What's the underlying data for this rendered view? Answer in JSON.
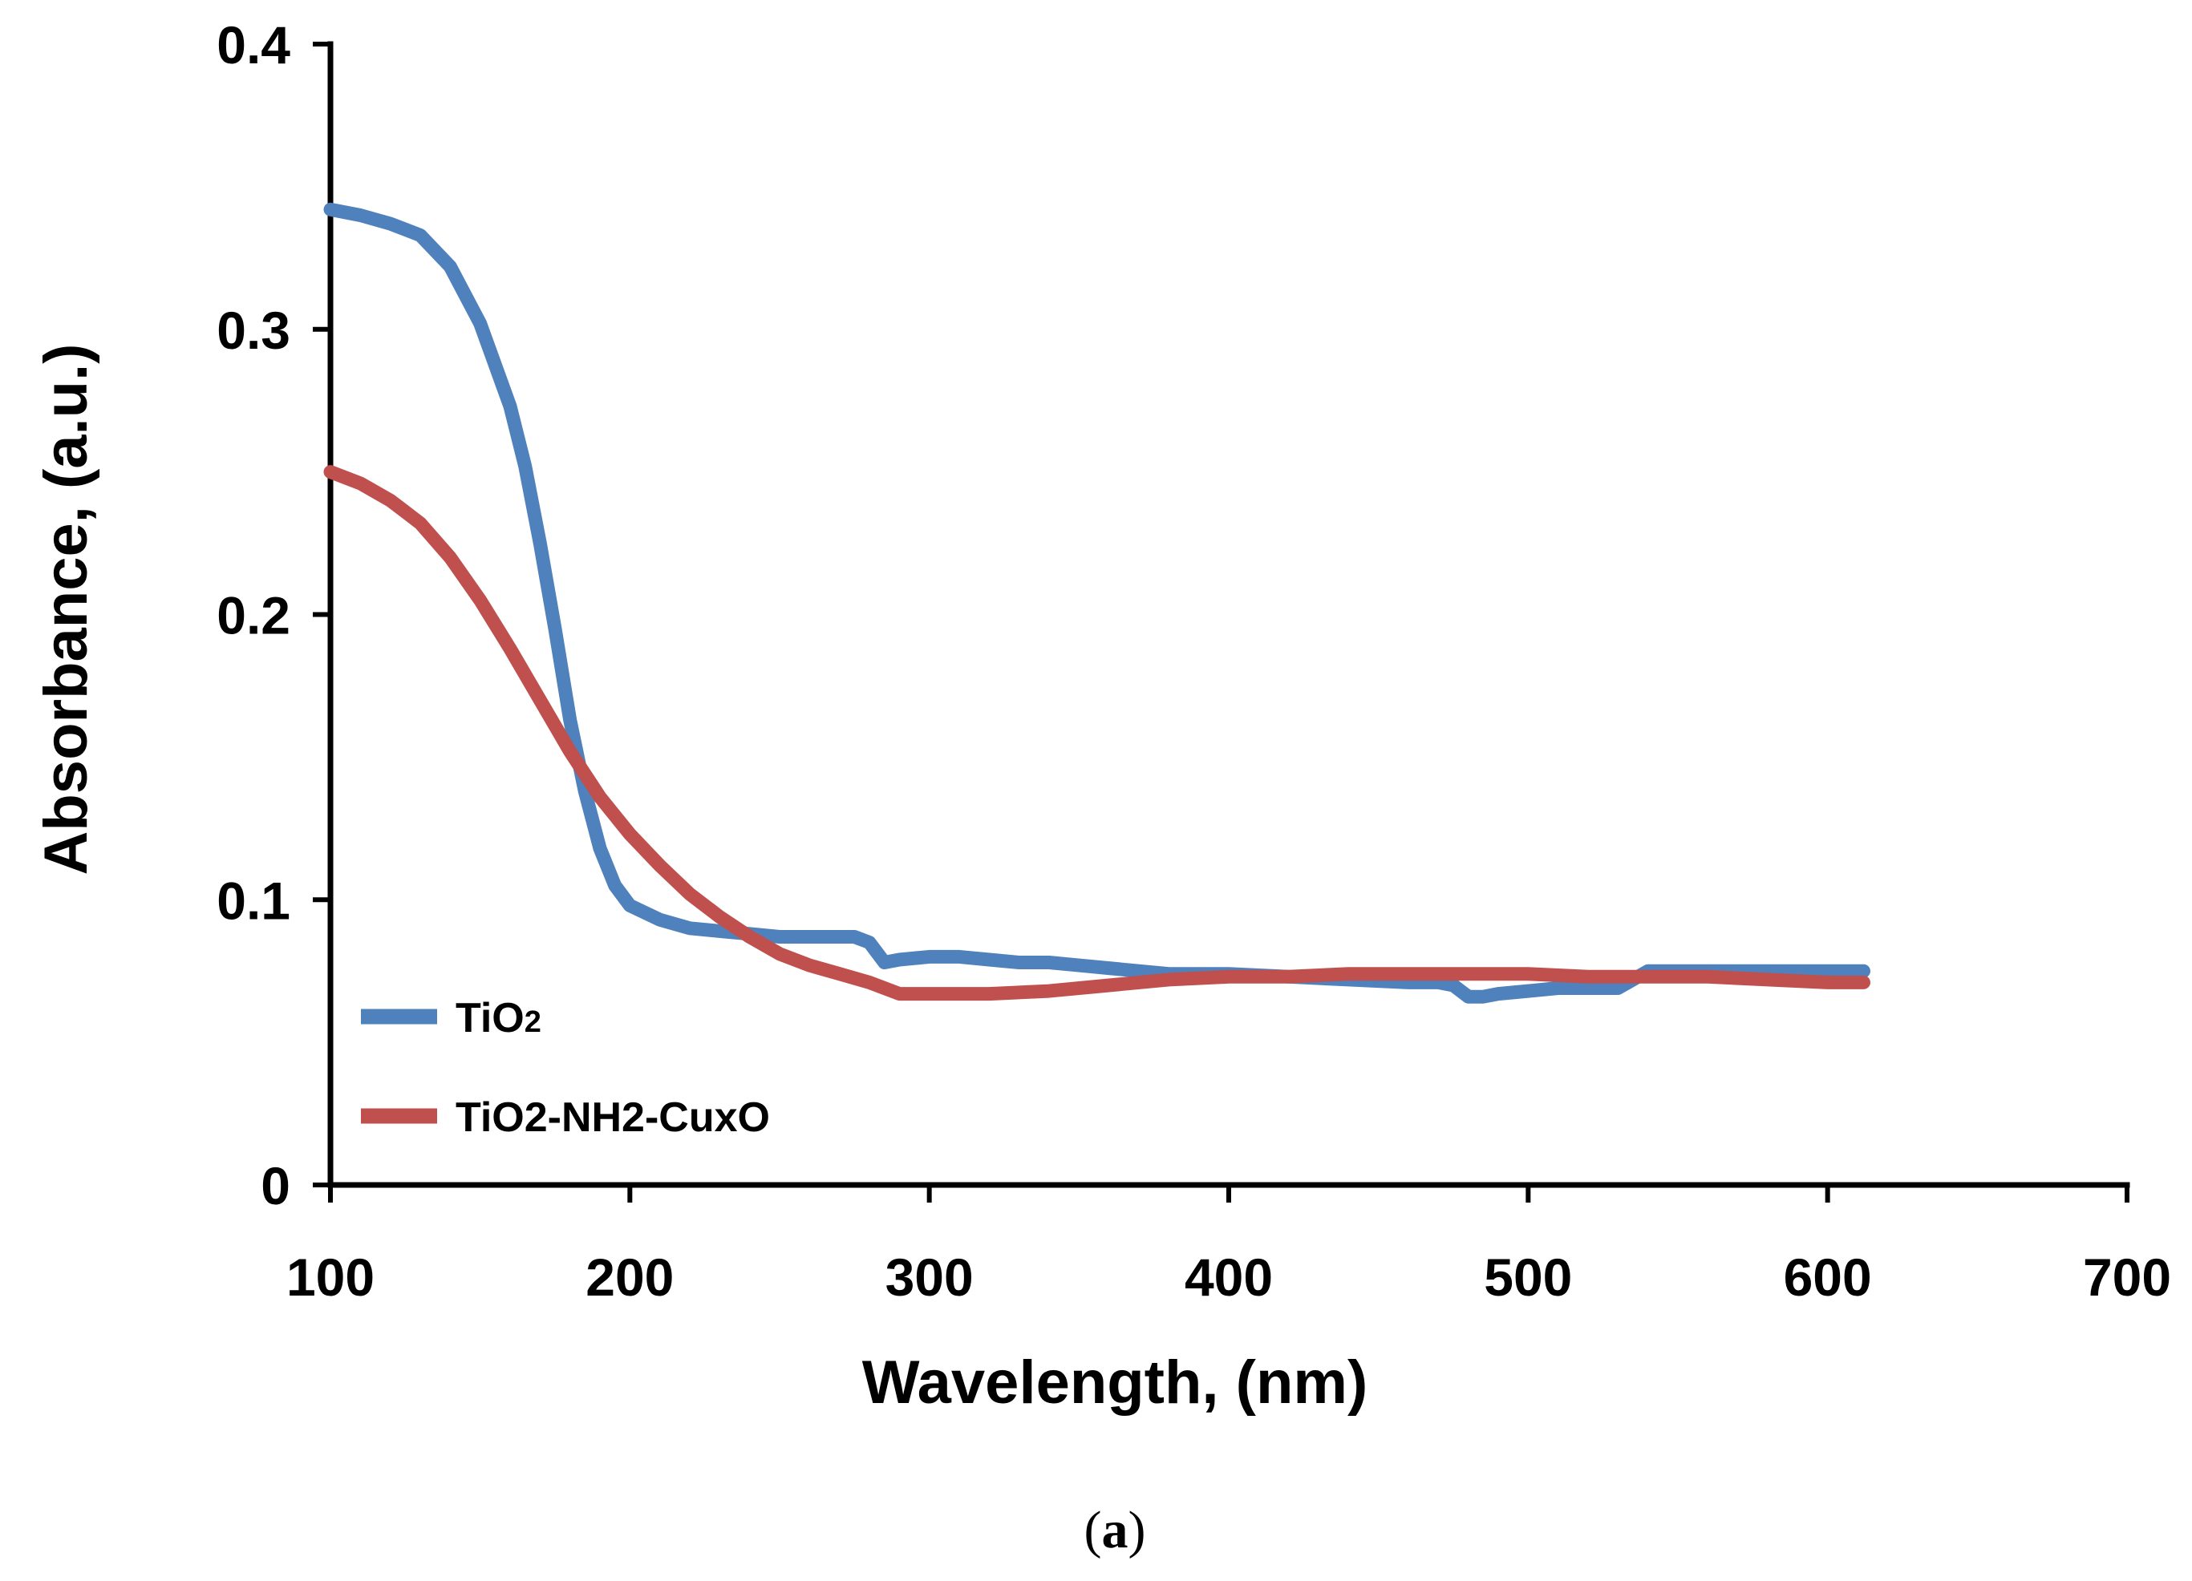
{
  "chart_data": {
    "type": "line",
    "title": "",
    "xlabel": "Wavelength, (nm)",
    "ylabel": "Absorbance, (a.u.)",
    "xlim": [
      100,
      700
    ],
    "ylim": [
      0,
      0.4
    ],
    "x_ticks": [
      100,
      200,
      300,
      400,
      500,
      600,
      700
    ],
    "x_tick_labels": [
      "100",
      "200",
      "300",
      "400",
      "500",
      "600",
      "700"
    ],
    "y_ticks": [
      0,
      0.1,
      0.2,
      0.3,
      0.4
    ],
    "y_tick_labels": [
      "0",
      "0.1",
      "0.2",
      "0.3",
      "0.4"
    ],
    "grid": false,
    "legend_position": "bottom-left",
    "series": [
      {
        "name": "TiO2",
        "label_main": "TiO",
        "label_sub": "2",
        "color": "#4f81bd",
        "x": [
          100,
          110,
          120,
          130,
          140,
          150,
          160,
          165,
          170,
          175,
          180,
          185,
          190,
          195,
          200,
          210,
          220,
          230,
          240,
          250,
          260,
          270,
          275,
          280,
          285,
          290,
          300,
          310,
          320,
          330,
          340,
          350,
          360,
          370,
          380,
          390,
          400,
          420,
          440,
          460,
          470,
          475,
          480,
          485,
          490,
          500,
          510,
          520,
          530,
          535,
          540,
          560,
          580,
          600,
          612
        ],
        "y": [
          0.342,
          0.34,
          0.337,
          0.333,
          0.322,
          0.302,
          0.273,
          0.252,
          0.225,
          0.195,
          0.163,
          0.138,
          0.118,
          0.105,
          0.098,
          0.093,
          0.09,
          0.089,
          0.088,
          0.087,
          0.087,
          0.087,
          0.087,
          0.085,
          0.078,
          0.079,
          0.08,
          0.08,
          0.079,
          0.078,
          0.078,
          0.077,
          0.076,
          0.075,
          0.074,
          0.074,
          0.074,
          0.073,
          0.072,
          0.071,
          0.071,
          0.07,
          0.066,
          0.066,
          0.067,
          0.068,
          0.069,
          0.069,
          0.069,
          0.072,
          0.075,
          0.075,
          0.075,
          0.075,
          0.075
        ]
      },
      {
        "name": "TiO2-NH2-CuxO",
        "label_main": "TiO2-NH2-CuxO",
        "label_sub": "",
        "color": "#c0504d",
        "x": [
          100,
          110,
          120,
          130,
          140,
          150,
          160,
          170,
          180,
          190,
          200,
          210,
          220,
          230,
          240,
          250,
          260,
          270,
          280,
          290,
          300,
          320,
          340,
          360,
          380,
          400,
          420,
          440,
          460,
          480,
          500,
          520,
          540,
          560,
          580,
          600,
          612
        ],
        "y": [
          0.25,
          0.246,
          0.24,
          0.232,
          0.22,
          0.205,
          0.188,
          0.17,
          0.152,
          0.136,
          0.123,
          0.112,
          0.102,
          0.094,
          0.087,
          0.081,
          0.077,
          0.074,
          0.071,
          0.067,
          0.067,
          0.067,
          0.068,
          0.07,
          0.072,
          0.073,
          0.073,
          0.074,
          0.074,
          0.074,
          0.074,
          0.073,
          0.073,
          0.073,
          0.072,
          0.071,
          0.071
        ]
      }
    ]
  },
  "caption": {
    "open": "(",
    "letter": "a",
    "close": ")"
  }
}
